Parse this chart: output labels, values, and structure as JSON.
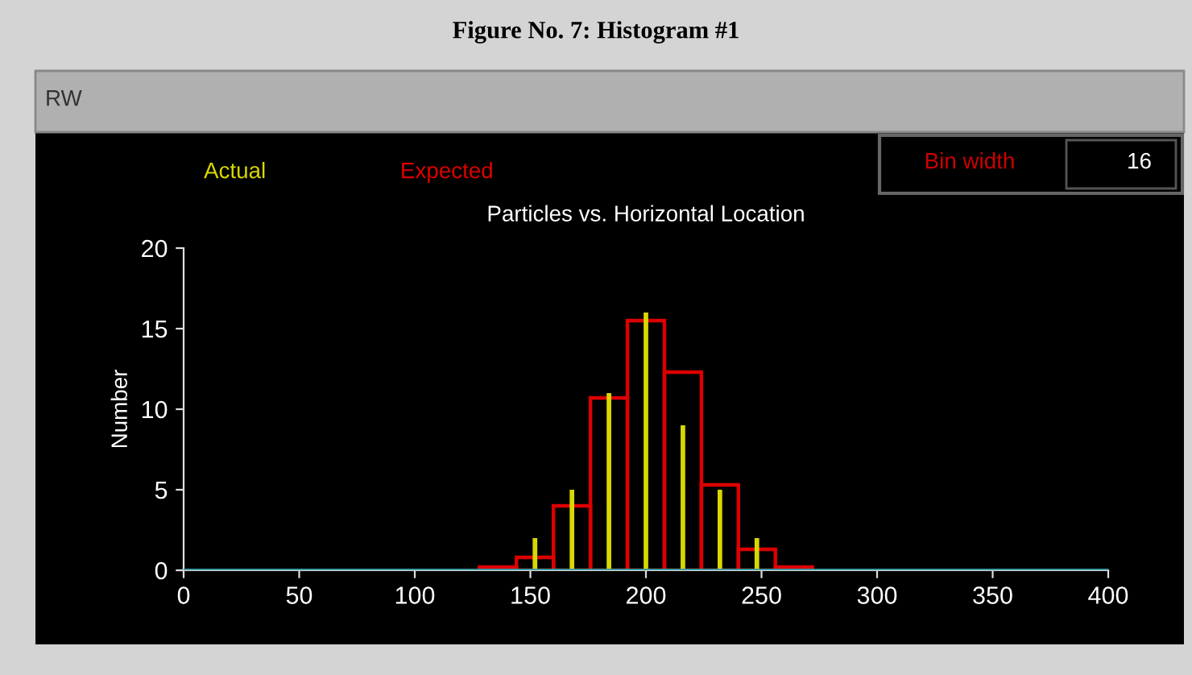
{
  "chart_data": {
    "type": "histogram",
    "title": "Particles vs. Horizontal Location",
    "ylabel": "Number",
    "annotations": [
      "Figure No. 7: Histogram #1",
      "RW",
      "Bin width",
      "16"
    ],
    "bins": [
      128,
      144,
      160,
      176,
      192,
      208,
      224,
      240,
      256,
      272
    ],
    "series": [
      {
        "name": "Actual",
        "color": "#d8d800",
        "type": "bar",
        "x": [
          152,
          168,
          184,
          200,
          216,
          232,
          248
        ],
        "values": [
          2,
          5,
          11,
          16,
          9,
          5,
          2
        ]
      },
      {
        "name": "Expected",
        "color": "#dd0000",
        "values": [
          0.2,
          0.8,
          4,
          10.7,
          15.5,
          12.3,
          5.3,
          1.3,
          0.2
        ]
      }
    ],
    "xlim": [
      0,
      400
    ],
    "xticks": [
      0,
      50,
      100,
      150,
      200,
      250,
      300,
      350,
      400
    ],
    "ylim": [
      0,
      20
    ],
    "yticks": [
      0,
      5,
      10,
      15,
      20
    ],
    "ref_lines": [
      {
        "axis": "y",
        "value": 0,
        "color": "#3f9fa8"
      }
    ],
    "legend": "top",
    "grid": false
  }
}
